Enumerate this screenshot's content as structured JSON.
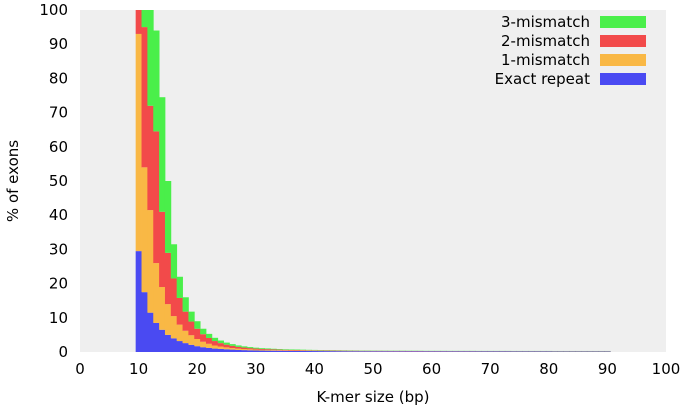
{
  "chart_data": {
    "type": "bar",
    "stacked": true,
    "title": "",
    "xlabel": "K-mer size (bp)",
    "ylabel": "% of exons",
    "xlim": [
      0,
      100
    ],
    "ylim": [
      0,
      100
    ],
    "xticks": [
      0,
      10,
      20,
      30,
      40,
      50,
      60,
      70,
      80,
      90,
      100
    ],
    "yticks": [
      0,
      10,
      20,
      30,
      40,
      50,
      60,
      70,
      80,
      90,
      100
    ],
    "grid": false,
    "legend_position": "top-right",
    "x": [
      10,
      11,
      12,
      13,
      14,
      15,
      16,
      17,
      18,
      19,
      20,
      21,
      22,
      23,
      24,
      25,
      26,
      27,
      28,
      29,
      30,
      31,
      32,
      33,
      34,
      35,
      36,
      37,
      38,
      39,
      40,
      41,
      42,
      43,
      44,
      45,
      46,
      47,
      48,
      49,
      50,
      51,
      52,
      53,
      54,
      55,
      56,
      57,
      58,
      59,
      60,
      61,
      62,
      63,
      64,
      65,
      66,
      67,
      68,
      69,
      70,
      71,
      72,
      73,
      74,
      75,
      76,
      77,
      78,
      79,
      80,
      81,
      82,
      83,
      84,
      85,
      86,
      87,
      88,
      89,
      90
    ],
    "series": [
      {
        "name": "Exact repeat",
        "color": "#4a4af2",
        "values": [
          29.5,
          17.5,
          11.5,
          8.5,
          6.5,
          5.0,
          4.0,
          3.2,
          2.6,
          2.1,
          1.7,
          1.4,
          1.2,
          1.0,
          0.9,
          0.8,
          0.7,
          0.6,
          0.55,
          0.5,
          0.45,
          0.42,
          0.4,
          0.38,
          0.36,
          0.34,
          0.32,
          0.31,
          0.3,
          0.29,
          0.28,
          0.27,
          0.26,
          0.25,
          0.24,
          0.23,
          0.22,
          0.22,
          0.21,
          0.21,
          0.2,
          0.2,
          0.2,
          0.19,
          0.19,
          0.19,
          0.18,
          0.18,
          0.18,
          0.17,
          0.17,
          0.17,
          0.17,
          0.16,
          0.16,
          0.16,
          0.16,
          0.16,
          0.15,
          0.15,
          0.15,
          0.15,
          0.15,
          0.15,
          0.14,
          0.14,
          0.14,
          0.14,
          0.14,
          0.14,
          0.14,
          0.13,
          0.13,
          0.13,
          0.13,
          0.13,
          0.13,
          0.13,
          0.13,
          0.13,
          0.13
        ]
      },
      {
        "name": "1-mismatch",
        "color": "#f9b845",
        "values": [
          63.5,
          36.5,
          30.0,
          17.5,
          12.5,
          9.0,
          6.5,
          4.8,
          3.6,
          2.8,
          2.1,
          1.6,
          1.2,
          0.9,
          0.7,
          0.55,
          0.45,
          0.38,
          0.32,
          0.28,
          0.24,
          0.21,
          0.19,
          0.17,
          0.15,
          0.14,
          0.13,
          0.12,
          0.11,
          0.1,
          0.1,
          0.09,
          0.09,
          0.08,
          0.08,
          0.08,
          0.07,
          0.07,
          0.07,
          0.07,
          0.06,
          0.06,
          0.06,
          0.06,
          0.06,
          0.06,
          0.05,
          0.05,
          0.05,
          0.05,
          0.05,
          0.05,
          0.05,
          0.05,
          0.05,
          0.05,
          0.05,
          0.05,
          0.05,
          0.05,
          0.05,
          0.05,
          0.05,
          0.05,
          0.05,
          0.05,
          0.05,
          0.05,
          0.05,
          0.05,
          0.05,
          0.05,
          0.05,
          0.05,
          0.05,
          0.05,
          0.05,
          0.05,
          0.05,
          0.05,
          0.05
        ]
      },
      {
        "name": "2-mismatch",
        "color": "#f24a4a",
        "values": [
          7.0,
          41.0,
          30.5,
          38.5,
          22.0,
          15.0,
          11.0,
          7.8,
          5.6,
          4.0,
          3.0,
          2.2,
          1.7,
          1.3,
          1.0,
          0.8,
          0.65,
          0.52,
          0.43,
          0.36,
          0.31,
          0.27,
          0.24,
          0.21,
          0.19,
          0.17,
          0.16,
          0.15,
          0.14,
          0.13,
          0.12,
          0.11,
          0.11,
          0.1,
          0.1,
          0.09,
          0.09,
          0.09,
          0.08,
          0.08,
          0.08,
          0.08,
          0.07,
          0.07,
          0.07,
          0.07,
          0.07,
          0.07,
          0.07,
          0.06,
          0.06,
          0.06,
          0.06,
          0.06,
          0.06,
          0.06,
          0.06,
          0.06,
          0.06,
          0.06,
          0.06,
          0.06,
          0.06,
          0.06,
          0.06,
          0.06,
          0.06,
          0.06,
          0.06,
          0.06,
          0.06,
          0.06,
          0.06,
          0.06,
          0.06,
          0.06,
          0.06,
          0.06,
          0.06,
          0.06,
          0.06
        ]
      },
      {
        "name": "3-mismatch",
        "color": "#4aef4a",
        "values": [
          0.0,
          5.0,
          28.0,
          29.5,
          33.5,
          21.0,
          10.0,
          6.2,
          4.2,
          2.9,
          2.2,
          1.6,
          1.2,
          0.95,
          0.75,
          0.6,
          0.5,
          0.42,
          0.35,
          0.3,
          0.26,
          0.23,
          0.21,
          0.19,
          0.17,
          0.16,
          0.15,
          0.14,
          0.13,
          0.12,
          0.11,
          0.11,
          0.1,
          0.1,
          0.09,
          0.09,
          0.09,
          0.08,
          0.08,
          0.08,
          0.08,
          0.07,
          0.07,
          0.07,
          0.07,
          0.07,
          0.07,
          0.07,
          0.06,
          0.06,
          0.06,
          0.06,
          0.06,
          0.06,
          0.06,
          0.06,
          0.06,
          0.06,
          0.06,
          0.06,
          0.06,
          0.06,
          0.06,
          0.06,
          0.06,
          0.06,
          0.06,
          0.06,
          0.06,
          0.06,
          0.06,
          0.06,
          0.06,
          0.06,
          0.06,
          0.06,
          0.06,
          0.06,
          0.06,
          0.06,
          0.06
        ]
      }
    ],
    "legend": [
      {
        "label": "3-mismatch",
        "color": "#4aef4a"
      },
      {
        "label": "2-mismatch",
        "color": "#f24a4a"
      },
      {
        "label": "1-mismatch",
        "color": "#f9b845"
      },
      {
        "label": "Exact repeat",
        "color": "#4a4af2"
      }
    ],
    "plot_background": "#efefef"
  }
}
